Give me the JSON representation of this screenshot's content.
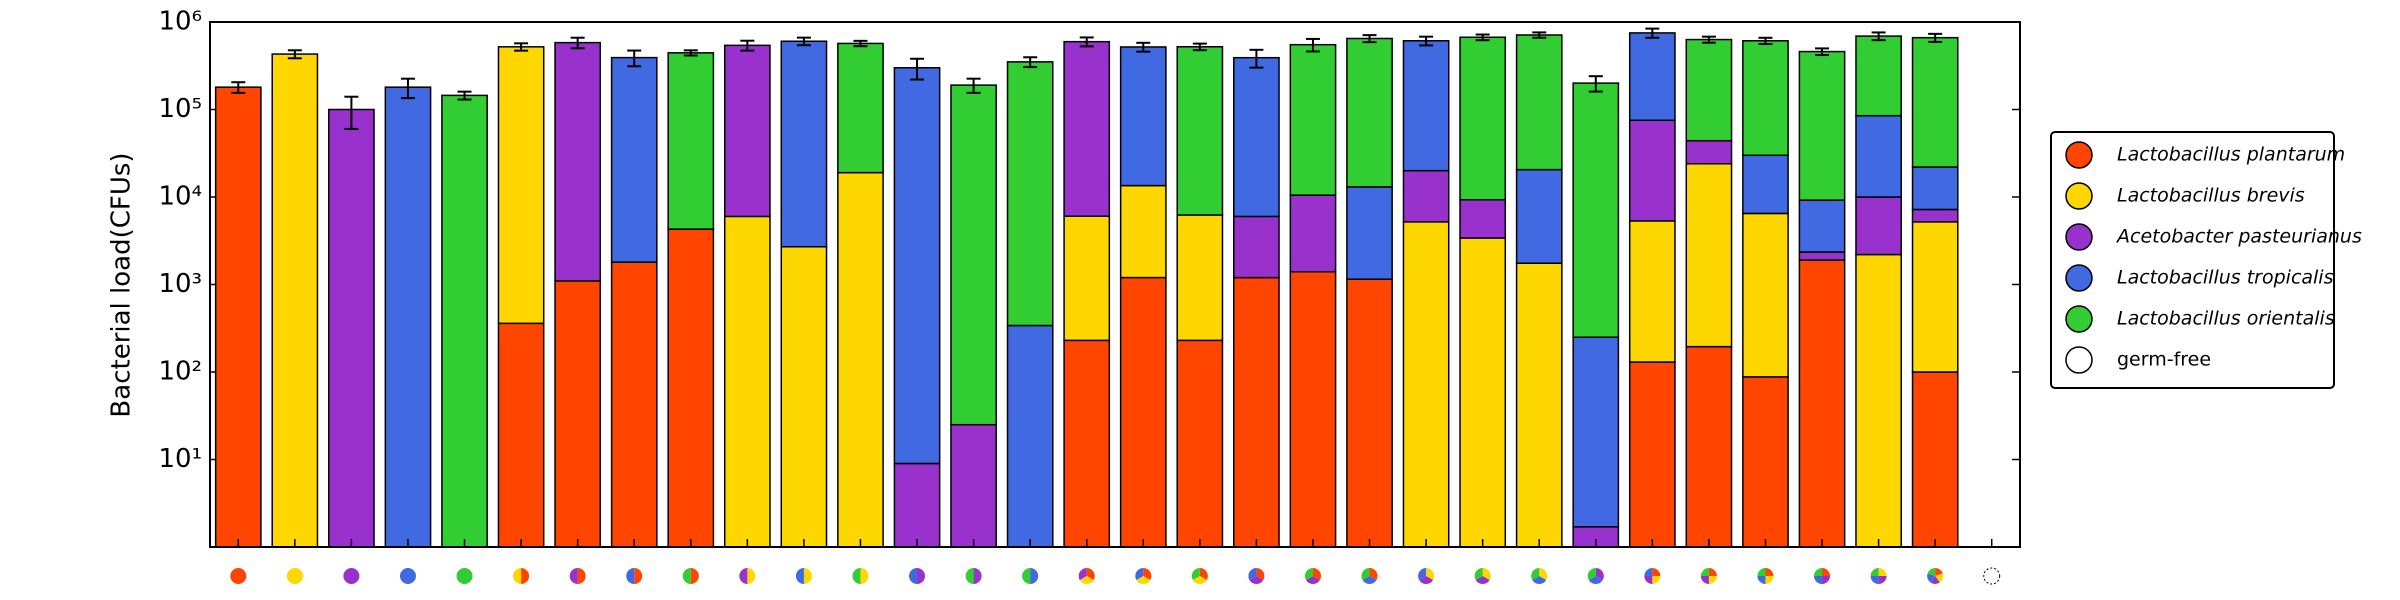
{
  "chart_data": {
    "type": "stacked-bar",
    "ylabel": "Bacterial load(CFUs)",
    "yscale": "log",
    "ylim": [
      1,
      1000000
    ],
    "yticks": [
      {
        "value": 10,
        "label": "10¹"
      },
      {
        "value": 100,
        "label": "10²"
      },
      {
        "value": 1000,
        "label": "10³"
      },
      {
        "value": 10000,
        "label": "10⁴"
      },
      {
        "value": 100000,
        "label": "10⁵"
      },
      {
        "value": 1000000,
        "label": "10⁶"
      }
    ],
    "legend": "right",
    "categories": [
      null,
      null,
      null,
      null,
      null,
      null,
      null,
      null,
      null,
      null,
      null,
      null,
      null,
      null,
      null,
      null,
      null,
      null,
      null,
      null,
      null,
      null,
      null,
      null,
      null,
      null,
      null,
      null,
      null,
      null,
      null,
      null
    ],
    "series": [
      {
        "name": "Lactobacillus plantarum",
        "color": "#ff4500",
        "italic": true,
        "values": [
          180000,
          null,
          null,
          null,
          null,
          360,
          1100,
          1800,
          4300,
          null,
          null,
          null,
          null,
          null,
          null,
          230,
          1200,
          230,
          1200,
          1400,
          1150,
          null,
          null,
          null,
          null,
          130,
          195,
          88,
          1900,
          null,
          100,
          null
        ]
      },
      {
        "name": "Lactobacillus brevis",
        "color": "#ffd700",
        "italic": true,
        "values": [
          null,
          430000,
          null,
          null,
          null,
          520000,
          null,
          null,
          null,
          6000,
          2700,
          19000,
          null,
          null,
          null,
          5800,
          12300,
          6000,
          null,
          null,
          null,
          5200,
          3400,
          1750,
          null,
          5200,
          23800,
          6400,
          null,
          2200,
          5100,
          null
        ]
      },
      {
        "name": "Acetobacter pasteurianus",
        "color": "#9932cc",
        "italic": true,
        "values": [
          null,
          null,
          100000,
          null,
          null,
          null,
          580000,
          null,
          null,
          535000,
          null,
          null,
          9,
          25,
          null,
          590000,
          null,
          null,
          4800,
          9100,
          null,
          14800,
          5900,
          null,
          1.7,
          70000,
          20000,
          null,
          450,
          7800,
          2000,
          null
        ]
      },
      {
        "name": "Lactobacillus tropicalis",
        "color": "#4169e1",
        "italic": true,
        "values": [
          null,
          null,
          null,
          180000,
          null,
          null,
          null,
          390000,
          null,
          null,
          600000,
          null,
          300000,
          null,
          340,
          null,
          505000,
          null,
          385000,
          null,
          11900,
          590000,
          null,
          18800,
          248,
          675000,
          null,
          23500,
          6850,
          75000,
          14800,
          null
        ]
      },
      {
        "name": "Lactobacillus orientalis",
        "color": "#32cd32",
        "italic": true,
        "values": [
          null,
          null,
          null,
          null,
          145000,
          null,
          null,
          null,
          440000,
          null,
          null,
          550000,
          null,
          190000,
          350000,
          null,
          null,
          515000,
          null,
          540000,
          635000,
          null,
          660000,
          690000,
          200000,
          null,
          586000,
          580000,
          450000,
          605000,
          640000,
          null
        ]
      },
      {
        "name": "germ-free",
        "color": "#ffffff",
        "italic": false,
        "values": [
          null,
          null,
          null,
          null,
          null,
          null,
          null,
          null,
          null,
          null,
          null,
          null,
          null,
          null,
          null,
          null,
          null,
          null,
          null,
          null,
          null,
          null,
          null,
          null,
          null,
          null,
          null,
          null,
          null,
          null,
          null,
          null
        ]
      }
    ],
    "errors": [
      25000,
      45000,
      40000,
      45000,
      15000,
      50000,
      80000,
      80000,
      30000,
      70000,
      60000,
      40000,
      80000,
      35000,
      45000,
      70000,
      60000,
      45000,
      90000,
      90000,
      60000,
      70000,
      50000,
      50000,
      40000,
      90000,
      50000,
      50000,
      40000,
      70000,
      70000,
      null
    ]
  }
}
